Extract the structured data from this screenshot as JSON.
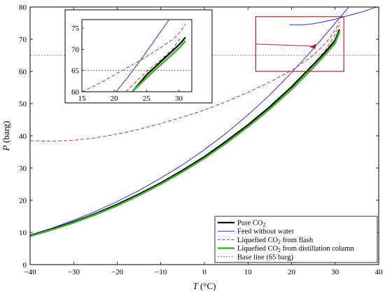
{
  "chart_data": {
    "type": "line",
    "xlabel": {
      "symbol": "T",
      "unit": " (°C)"
    },
    "ylabel": {
      "symbol": "P",
      "unit": " (barg)"
    },
    "xlim": [
      -40,
      40
    ],
    "ylim": [
      0,
      80
    ],
    "xticks": [
      "−40",
      "−30",
      "−20",
      "−10",
      "0",
      "10",
      "20",
      "30",
      "40"
    ],
    "xtick_values": [
      -40,
      -30,
      -20,
      -10,
      0,
      10,
      20,
      30,
      40
    ],
    "yticks": [
      "0",
      "10",
      "20",
      "30",
      "40",
      "50",
      "60",
      "70",
      "80"
    ],
    "ytick_values": [
      0,
      10,
      20,
      30,
      40,
      50,
      60,
      70,
      80
    ],
    "colors": {
      "pure": "#000000",
      "feed": "#3333cc",
      "flash": "#b23a2e",
      "distill": "#4caf3a",
      "base": "#555555",
      "zoom_box": "#a52a2a"
    },
    "series": [
      {
        "key": "pure",
        "legend": "Pure CO",
        "legend_sub": "2",
        "legend_after": "",
        "style": "solid",
        "x": [
          -40,
          -35,
          -30,
          -25,
          -20,
          -15,
          -10,
          -5,
          0,
          5,
          10,
          15,
          20,
          25,
          28,
          30,
          31
        ],
        "y": [
          9.0,
          11.0,
          13.3,
          15.8,
          18.7,
          21.9,
          25.4,
          29.3,
          33.5,
          38.3,
          43.4,
          49.0,
          55.2,
          62.1,
          66.4,
          69.7,
          73.0
        ]
      },
      {
        "key": "feed",
        "legend": "Feed without water",
        "legend_sub": "",
        "legend_after": "",
        "style": "solid",
        "x": [
          -40,
          -35,
          -30,
          -25,
          -20,
          -15,
          -10,
          -5,
          0,
          5,
          10,
          15,
          20,
          25,
          30,
          35,
          40
        ],
        "y": [
          9.2,
          11.3,
          13.8,
          16.5,
          19.6,
          23.0,
          26.9,
          31.0,
          35.7,
          40.8,
          46.5,
          52.7,
          59.6,
          67.0,
          75.0,
          83.0,
          91.0
        ]
      },
      {
        "key": "feed_dew",
        "legend": "",
        "legend_sub": "",
        "legend_after": "",
        "style": "solid",
        "x": [
          19.5,
          21,
          23,
          25,
          27,
          30,
          33,
          36,
          38,
          40
        ],
        "y": [
          74.5,
          74.4,
          74.5,
          74.8,
          75.3,
          76.2,
          77.3,
          78.4,
          79.3,
          80.2
        ]
      },
      {
        "key": "flash",
        "legend": "Liquefied CO",
        "legend_sub": "2",
        "legend_after": "  from flash",
        "style": "dashed",
        "x": [
          -40,
          -35,
          -30,
          -25,
          -20,
          -15,
          -10,
          -5,
          0,
          5,
          10,
          15,
          20,
          25,
          28,
          30,
          31
        ],
        "y": [
          8.9,
          10.9,
          13.2,
          15.7,
          18.6,
          21.8,
          25.3,
          29.2,
          33.4,
          38.2,
          43.3,
          48.9,
          55.1,
          62.0,
          67.0,
          71.5,
          74.5
        ]
      },
      {
        "key": "flash_dew",
        "legend": "",
        "legend_sub": "",
        "legend_after": "",
        "style": "dashed",
        "x": [
          -40,
          -35,
          -30,
          -25,
          -20,
          -15,
          -10,
          -5,
          0,
          5,
          10,
          15,
          20,
          25,
          28,
          30,
          31
        ],
        "y": [
          38.5,
          38.3,
          38.6,
          39.4,
          40.5,
          42.0,
          43.8,
          45.8,
          48.0,
          50.6,
          53.5,
          56.7,
          60.3,
          65.0,
          69.0,
          72.8,
          75.5
        ]
      },
      {
        "key": "distill",
        "legend": "Liquefied CO",
        "legend_sub": "2",
        "legend_after": "  from distillation column",
        "style": "thick",
        "x": [
          -40,
          -35,
          -30,
          -25,
          -20,
          -15,
          -10,
          -5,
          0,
          5,
          10,
          15,
          20,
          25,
          28,
          30,
          31
        ],
        "y": [
          8.8,
          10.8,
          13.0,
          15.5,
          18.3,
          21.5,
          25.0,
          28.8,
          33.0,
          37.7,
          42.8,
          48.3,
          54.4,
          61.2,
          65.6,
          68.8,
          72.2
        ]
      },
      {
        "key": "base",
        "legend": "Base line (65 barg)",
        "legend_sub": "",
        "legend_after": "",
        "style": "dotted",
        "x": [
          -40,
          40
        ],
        "y": [
          65,
          65
        ]
      }
    ],
    "legend_keys": [
      "pure",
      "feed",
      "flash",
      "distill",
      "base"
    ],
    "legend_placement": "bottom-right",
    "zoom_region": {
      "xlim": [
        15,
        32
      ],
      "ylim": [
        60,
        77
      ]
    },
    "inset": {
      "xlim": [
        15,
        32
      ],
      "ylim": [
        60,
        77
      ],
      "xticks": [
        "15",
        "20",
        "25",
        "30"
      ],
      "xtick_values": [
        15,
        20,
        25,
        30
      ],
      "yticks": [
        "60",
        "65",
        "70",
        "75"
      ],
      "ytick_values": [
        60,
        65,
        70,
        75
      ],
      "series": [
        {
          "key": "pure",
          "x": [
            22.8,
            25,
            27,
            29,
            30.3,
            31
          ],
          "y": [
            60,
            64.0,
            66.8,
            69.6,
            71.5,
            72.8
          ]
        },
        {
          "key": "feed",
          "x": [
            20.3,
            22,
            24,
            26,
            28.5
          ],
          "y": [
            60,
            63.2,
            67.3,
            71.6,
            77
          ]
        },
        {
          "key": "flash",
          "x": [
            15,
            18,
            21,
            23,
            25,
            27,
            29,
            30.3,
            31
          ],
          "y": [
            60,
            62.2,
            64.8,
            66.5,
            68.3,
            70.2,
            72.3,
            74.2,
            76.0
          ]
        },
        {
          "key": "flash_dew",
          "x": [
            21.8,
            23,
            25,
            27,
            29,
            30.3
          ],
          "y": [
            60,
            61.8,
            64.8,
            67.2,
            70.0,
            72.8
          ]
        },
        {
          "key": "distill",
          "x": [
            22.8,
            25,
            27,
            29,
            30.3,
            31
          ],
          "y": [
            60,
            63.3,
            66.1,
            68.8,
            70.7,
            72.0
          ]
        },
        {
          "key": "base",
          "x": [
            15,
            32
          ],
          "y": [
            65,
            65
          ]
        }
      ]
    }
  }
}
